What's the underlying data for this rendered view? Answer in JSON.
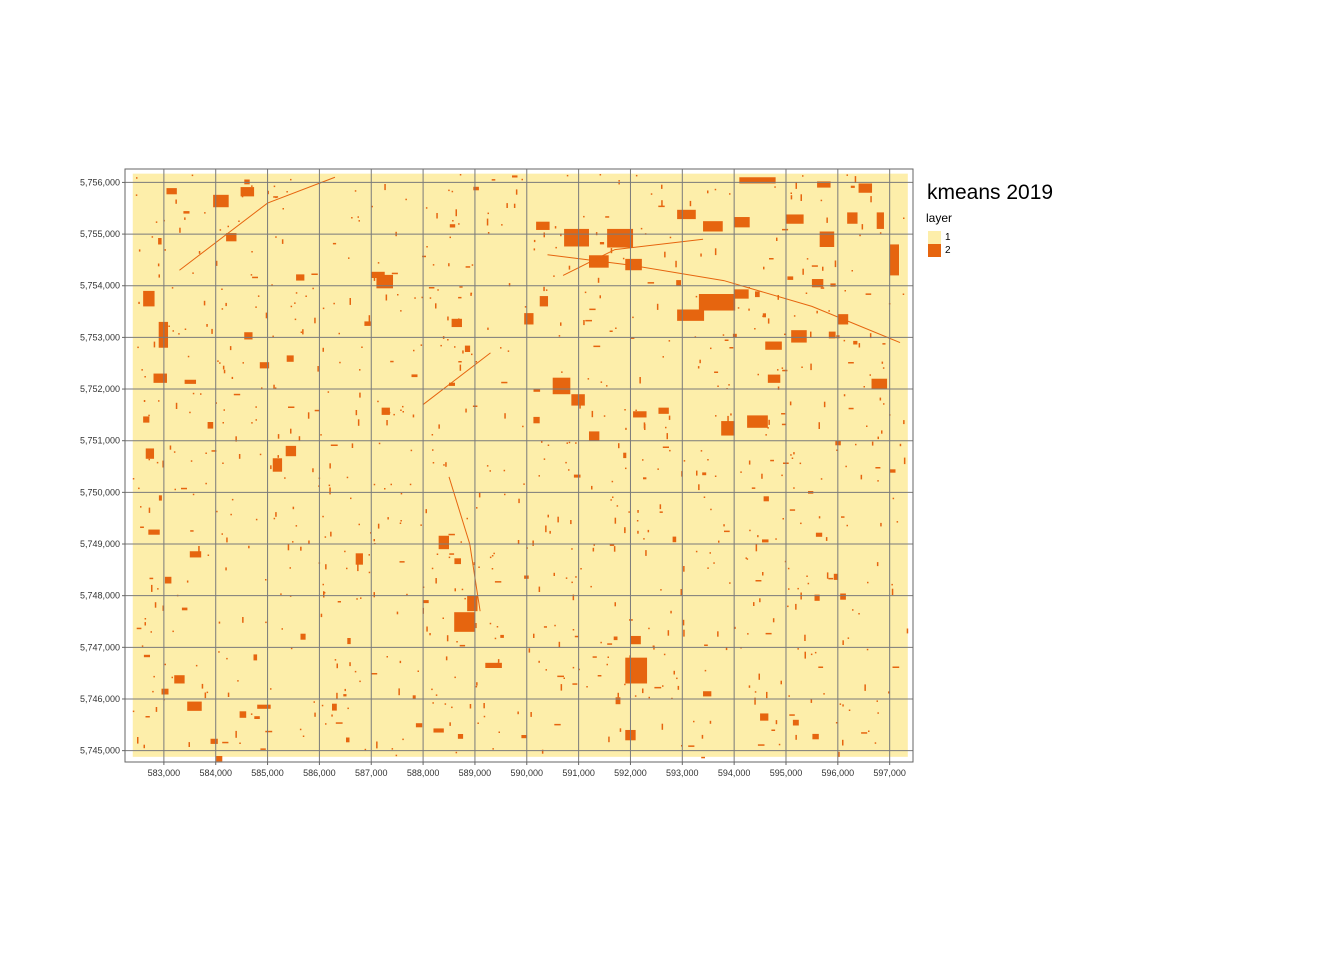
{
  "title": "kmeans 2019",
  "legend": {
    "title": "layer",
    "items": [
      {
        "label": "1",
        "color": "#FDEEAA"
      },
      {
        "label": "2",
        "color": "#E6650F"
      }
    ]
  },
  "colors": {
    "background_class": "#FDEEAA",
    "foreground_class": "#E6650F",
    "grid": "#7a7a7a",
    "frame": "#666666"
  },
  "chart_data": {
    "type": "heatmap",
    "title": "kmeans 2019",
    "xlabel": "",
    "ylabel": "",
    "grid": true,
    "legend_placement": "right",
    "xlim": [
      582250,
      597450
    ],
    "ylim": [
      5744780,
      5756260
    ],
    "x_ticks": [
      583000,
      584000,
      585000,
      586000,
      587000,
      588000,
      589000,
      590000,
      591000,
      592000,
      593000,
      594000,
      595000,
      596000,
      597000
    ],
    "x_tick_labels": [
      "583,000",
      "584,000",
      "585,000",
      "586,000",
      "587,000",
      "588,000",
      "589,000",
      "590,000",
      "591,000",
      "592,000",
      "593,000",
      "594,000",
      "595,000",
      "596,000",
      "597,000"
    ],
    "y_ticks": [
      5745000,
      5746000,
      5747000,
      5748000,
      5749000,
      5750000,
      5751000,
      5752000,
      5753000,
      5754000,
      5755000,
      5756000
    ],
    "y_tick_labels": [
      "5,745,000",
      "5,746,000",
      "5,747,000",
      "5,748,000",
      "5,749,000",
      "5,750,000",
      "5,751,000",
      "5,752,000",
      "5,753,000",
      "5,754,000",
      "5,755,000",
      "5,756,000"
    ],
    "raster_extent": {
      "xmin": 582400,
      "xmax": 597350,
      "ymin": 5744880,
      "ymax": 5756170
    },
    "classes": [
      {
        "value": 1,
        "color": "#FDEEAA"
      },
      {
        "value": 2,
        "color": "#E6650F"
      }
    ],
    "class2_patches": [
      [
        593320,
        5753520,
        700,
        320
      ],
      [
        592900,
        5753320,
        520,
        220
      ],
      [
        594000,
        5753750,
        280,
        180
      ],
      [
        591550,
        5754740,
        500,
        360
      ],
      [
        590720,
        5754760,
        480,
        340
      ],
      [
        591200,
        5754350,
        380,
        240
      ],
      [
        591900,
        5754300,
        320,
        220
      ],
      [
        590180,
        5755080,
        260,
        160
      ],
      [
        592900,
        5755290,
        360,
        180
      ],
      [
        593400,
        5755050,
        380,
        200
      ],
      [
        594000,
        5755130,
        300,
        200
      ],
      [
        595000,
        5755200,
        340,
        180
      ],
      [
        595650,
        5754750,
        280,
        300
      ],
      [
        596180,
        5755200,
        200,
        220
      ],
      [
        595500,
        5753970,
        220,
        160
      ],
      [
        594100,
        5755980,
        700,
        120
      ],
      [
        595600,
        5755900,
        260,
        120
      ],
      [
        596400,
        5755800,
        260,
        180
      ],
      [
        597000,
        5754200,
        180,
        600
      ],
      [
        596750,
        5755100,
        140,
        320
      ],
      [
        594250,
        5751250,
        400,
        240
      ],
      [
        593750,
        5751100,
        260,
        280
      ],
      [
        594650,
        5752120,
        240,
        160
      ],
      [
        595100,
        5752900,
        300,
        240
      ],
      [
        594600,
        5752760,
        320,
        160
      ],
      [
        590500,
        5751900,
        340,
        320
      ],
      [
        590860,
        5751680,
        260,
        220
      ],
      [
        591200,
        5751000,
        200,
        180
      ],
      [
        592050,
        5751450,
        260,
        120
      ],
      [
        592540,
        5751520,
        200,
        120
      ],
      [
        589950,
        5753250,
        180,
        220
      ],
      [
        590250,
        5753600,
        160,
        200
      ],
      [
        587100,
        5753950,
        320,
        260
      ],
      [
        583950,
        5755520,
        300,
        240
      ],
      [
        584200,
        5754860,
        200,
        160
      ],
      [
        584480,
        5755730,
        260,
        180
      ],
      [
        583050,
        5755770,
        200,
        120
      ],
      [
        582600,
        5753600,
        220,
        300
      ],
      [
        582900,
        5752800,
        180,
        500
      ],
      [
        582800,
        5752120,
        260,
        180
      ],
      [
        583400,
        5752100,
        220,
        80
      ],
      [
        582650,
        5750650,
        160,
        200
      ],
      [
        582700,
        5749180,
        220,
        100
      ],
      [
        583500,
        5748740,
        220,
        120
      ],
      [
        583200,
        5746300,
        200,
        160
      ],
      [
        583450,
        5745770,
        280,
        180
      ],
      [
        583900,
        5745130,
        140,
        100
      ],
      [
        584800,
        5745810,
        260,
        80
      ],
      [
        585100,
        5750400,
        180,
        260
      ],
      [
        585350,
        5750700,
        200,
        200
      ],
      [
        587200,
        5751500,
        160,
        140
      ],
      [
        588600,
        5747300,
        400,
        380
      ],
      [
        588850,
        5747700,
        200,
        300
      ],
      [
        588300,
        5748900,
        200,
        260
      ],
      [
        589200,
        5746600,
        320,
        100
      ],
      [
        588200,
        5745350,
        200,
        80
      ],
      [
        586700,
        5748600,
        140,
        220
      ],
      [
        587000,
        5754150,
        260,
        120
      ],
      [
        585550,
        5754100,
        160,
        120
      ],
      [
        591900,
        5746300,
        420,
        500
      ],
      [
        592000,
        5747060,
        200,
        160
      ],
      [
        591900,
        5745200,
        200,
        200
      ],
      [
        593400,
        5746050,
        160,
        100
      ],
      [
        594500,
        5745580,
        160,
        140
      ],
      [
        595550,
        5747900,
        100,
        120
      ],
      [
        584850,
        5752400,
        180,
        120
      ],
      [
        584550,
        5752960,
        160,
        140
      ],
      [
        588550,
        5753200,
        200,
        160
      ],
      [
        582600,
        5751350,
        120,
        120
      ],
      [
        596650,
        5752000,
        300,
        200
      ],
      [
        596000,
        5753250,
        200,
        200
      ]
    ]
  }
}
